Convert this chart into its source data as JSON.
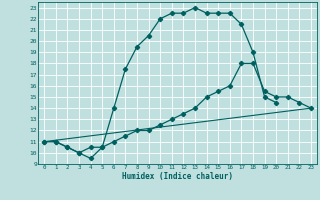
{
  "xlabel": "Humidex (Indice chaleur)",
  "bg_color": "#c0e0e0",
  "grid_color": "#ffffff",
  "line_color": "#006060",
  "xlim": [
    -0.5,
    23.5
  ],
  "ylim": [
    9,
    23.5
  ],
  "yticks": [
    9,
    10,
    11,
    12,
    13,
    14,
    15,
    16,
    17,
    18,
    19,
    20,
    21,
    22,
    23
  ],
  "xticks": [
    0,
    1,
    2,
    3,
    4,
    5,
    6,
    7,
    8,
    9,
    10,
    11,
    12,
    13,
    14,
    15,
    16,
    17,
    18,
    19,
    20,
    21,
    22,
    23
  ],
  "line1_x": [
    0,
    1,
    2,
    3,
    4,
    5,
    6,
    7,
    8,
    9,
    10,
    11,
    12,
    13,
    14,
    15,
    16,
    17,
    18,
    19,
    20
  ],
  "line1_y": [
    11,
    11,
    10.5,
    10,
    9.5,
    10.5,
    14,
    17.5,
    19.5,
    20.5,
    22,
    22.5,
    22.5,
    23,
    22.5,
    22.5,
    22.5,
    21.5,
    19,
    15,
    14.5
  ],
  "line2_x": [
    0,
    1,
    2,
    3,
    4,
    5,
    6,
    7,
    8,
    9,
    10,
    11,
    12,
    13,
    14,
    15,
    16,
    17,
    18,
    19,
    20,
    21,
    22,
    23
  ],
  "line2_y": [
    11,
    11,
    10.5,
    10,
    10.5,
    10.5,
    11,
    11.5,
    12,
    12,
    12.5,
    13,
    13.5,
    14,
    15,
    15.5,
    16,
    18,
    18,
    15.5,
    15,
    15,
    14.5,
    14
  ],
  "line3_x": [
    0,
    23
  ],
  "line3_y": [
    11,
    14
  ]
}
